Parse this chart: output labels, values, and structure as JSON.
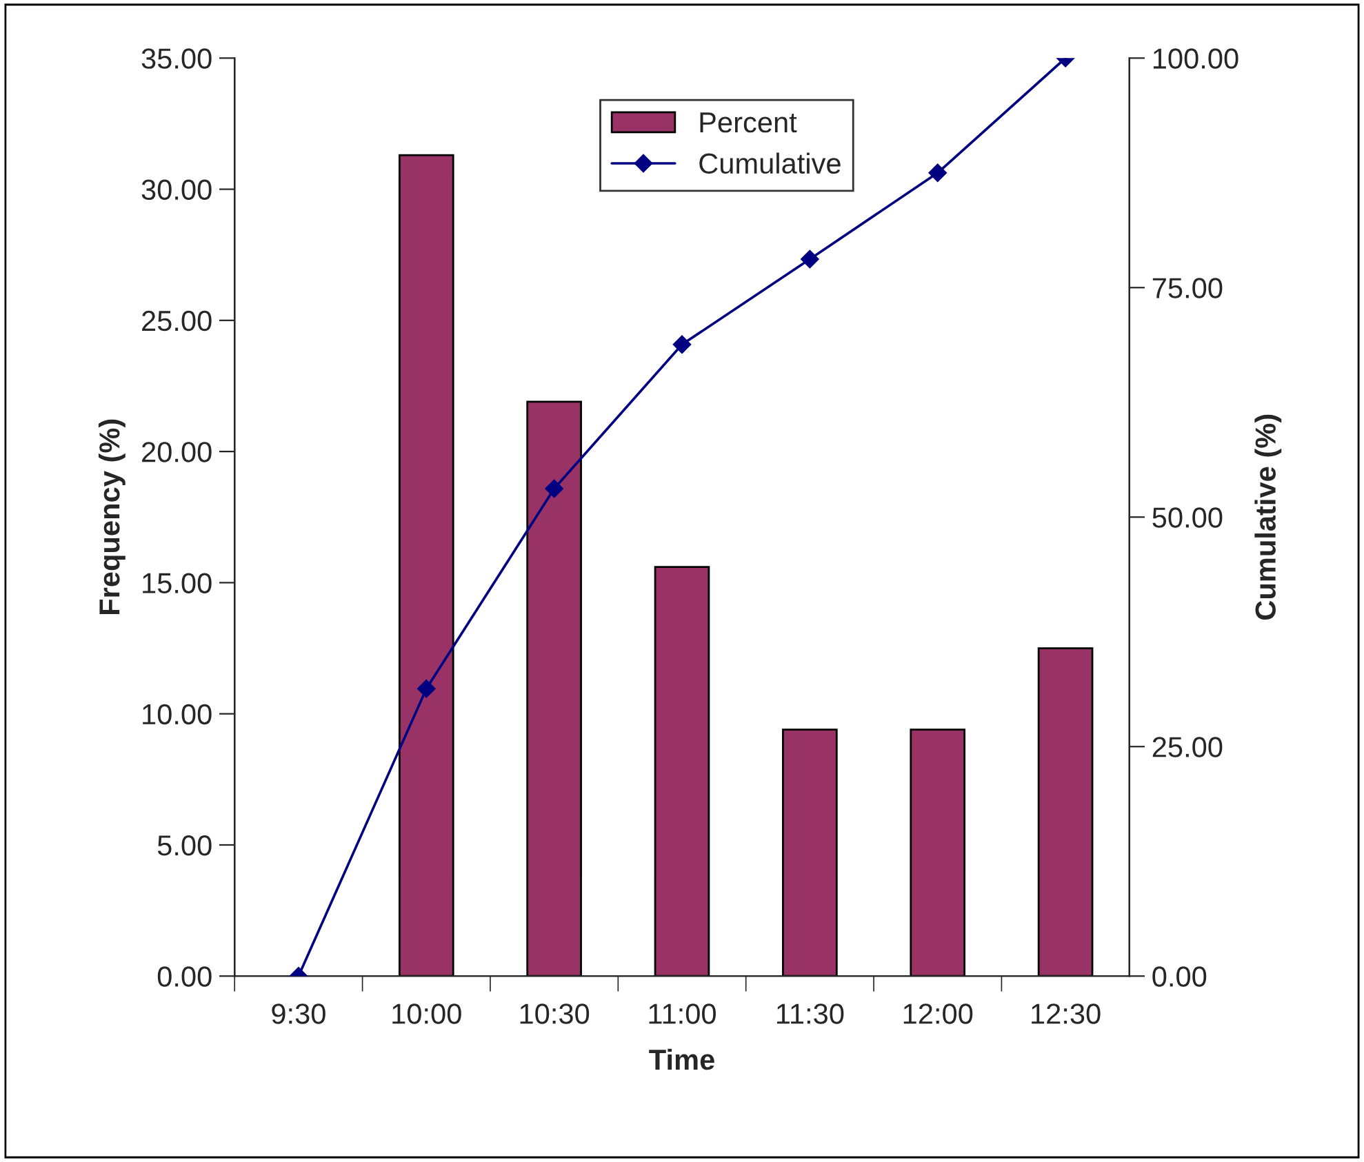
{
  "chart_data": {
    "type": "bar",
    "xlabel": "Time",
    "ylabel": "Frequency (%)",
    "y2label": "Cumulative (%)",
    "categories": [
      "9:30",
      "10:00",
      "10:30",
      "11:00",
      "11:30",
      "12:00",
      "12:30"
    ],
    "series": [
      {
        "name": "Percent",
        "color": "#993366",
        "values": [
          null,
          31.3,
          21.9,
          15.6,
          9.4,
          9.4,
          12.5
        ]
      },
      {
        "name": "Cumulative",
        "type": "line",
        "axis": "y2",
        "color": "#000080",
        "marker": "diamond",
        "values": [
          0,
          31.3,
          53.1,
          68.8,
          78.1,
          87.5,
          100
        ]
      }
    ],
    "ylim": [
      0,
      35
    ],
    "yticks": [
      {
        "value": 0,
        "label": "0.00"
      },
      {
        "value": 5,
        "label": "5.00"
      },
      {
        "value": 10,
        "label": "10.00"
      },
      {
        "value": 15,
        "label": "15.00"
      },
      {
        "value": 20,
        "label": "20.00"
      },
      {
        "value": 25,
        "label": "25.00"
      },
      {
        "value": 30,
        "label": "30.00"
      },
      {
        "value": 35,
        "label": "35.00"
      }
    ],
    "y2lim": [
      0,
      100
    ],
    "y2ticks": [
      {
        "value": 0,
        "label": "0.00"
      },
      {
        "value": 25,
        "label": "25.00"
      },
      {
        "value": 50,
        "label": "50.00"
      },
      {
        "value": 75,
        "label": "75.00"
      },
      {
        "value": 100,
        "label": "100.00"
      }
    ],
    "grid": false,
    "legend": "top"
  }
}
